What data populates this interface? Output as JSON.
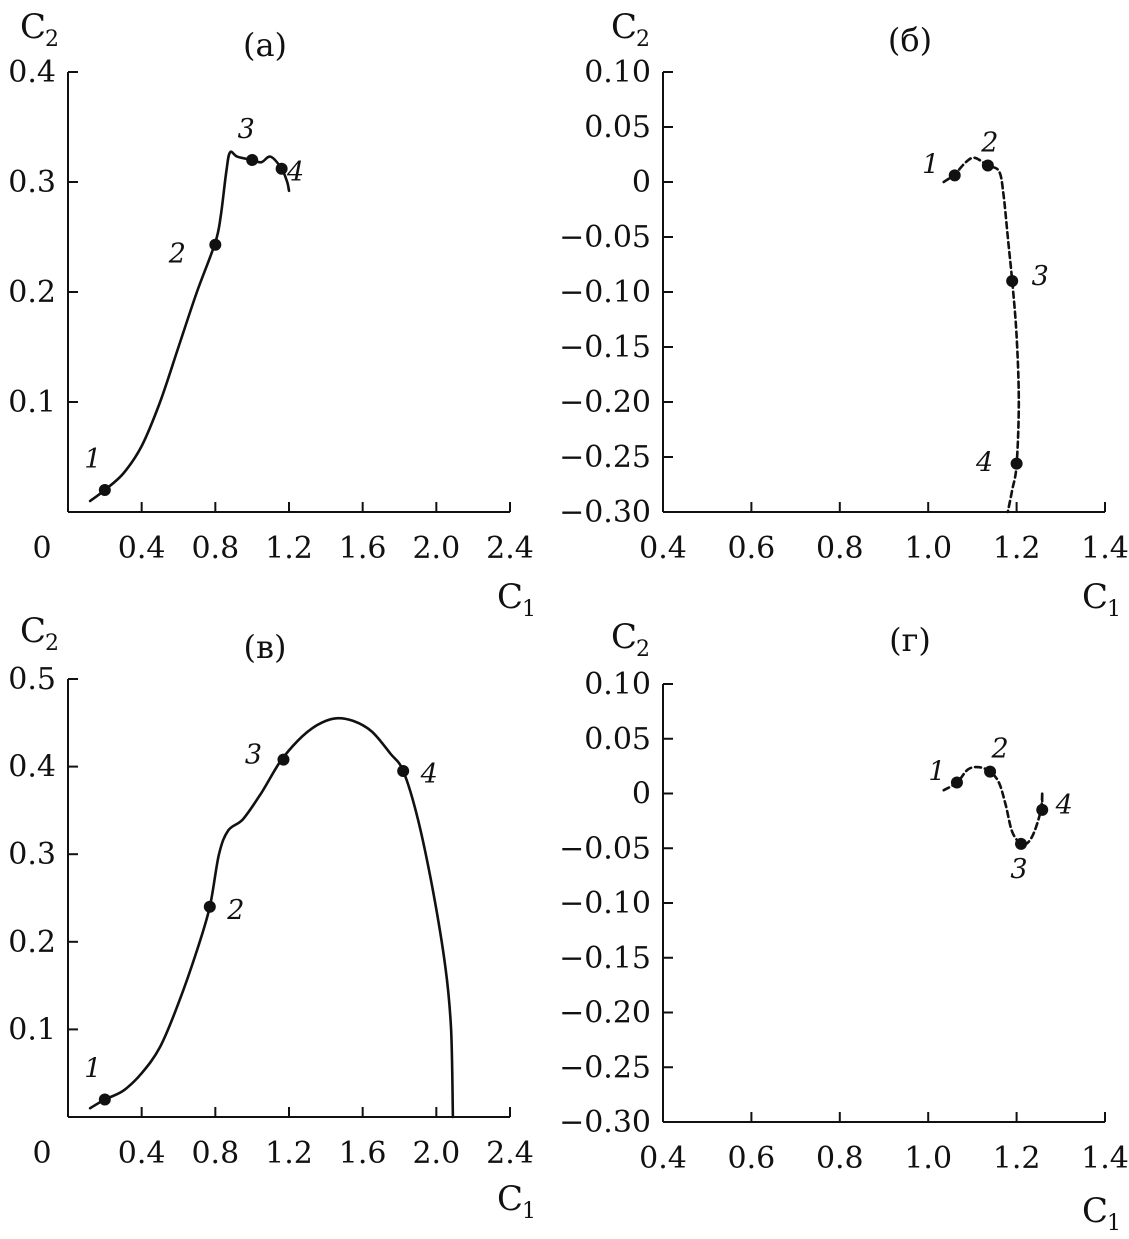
{
  "chart_data": [
    {
      "panel": "(а)",
      "type": "line",
      "xlabel": "C",
      "xlabel_sub": "1",
      "ylabel": "C",
      "ylabel_sub": "2",
      "xlim": [
        0,
        2.4
      ],
      "ylim": [
        0,
        0.4
      ],
      "x_ticks": [
        "0",
        "0.4",
        "0.8",
        "1.2",
        "1.6",
        "2.0",
        "2.4"
      ],
      "y_ticks": [
        "0.1",
        "0.2",
        "0.3",
        "0.4"
      ],
      "line_style": "solid",
      "curve": [
        [
          0.12,
          0.01
        ],
        [
          0.2,
          0.02
        ],
        [
          0.3,
          0.035
        ],
        [
          0.4,
          0.06
        ],
        [
          0.5,
          0.1
        ],
        [
          0.6,
          0.15
        ],
        [
          0.7,
          0.2
        ],
        [
          0.8,
          0.245
        ],
        [
          0.83,
          0.27
        ],
        [
          0.86,
          0.31
        ],
        [
          0.88,
          0.327
        ],
        [
          0.92,
          0.323
        ],
        [
          1.0,
          0.32
        ],
        [
          1.05,
          0.318
        ],
        [
          1.1,
          0.323
        ],
        [
          1.16,
          0.312
        ],
        [
          1.19,
          0.3
        ],
        [
          1.2,
          0.292
        ]
      ],
      "points": [
        {
          "label": "1",
          "x": 0.2,
          "y": 0.02
        },
        {
          "label": "2",
          "x": 0.8,
          "y": 0.243
        },
        {
          "label": "3",
          "x": 1.0,
          "y": 0.32
        },
        {
          "label": "4",
          "x": 1.16,
          "y": 0.312
        }
      ]
    },
    {
      "panel": "(б)",
      "type": "line",
      "xlabel": "C",
      "xlabel_sub": "1",
      "ylabel": "C",
      "ylabel_sub": "2",
      "xlim": [
        0.4,
        1.4
      ],
      "ylim": [
        -0.3,
        0.1
      ],
      "x_ticks": [
        "0.4",
        "0.6",
        "0.8",
        "1.0",
        "1.2",
        "1.4"
      ],
      "y_ticks": [
        "0.10",
        "0.05",
        "0",
        "−0.05",
        "−0.10",
        "−0.15",
        "−0.20",
        "−0.25",
        "−0.30"
      ],
      "line_style": "dashed",
      "curve": [
        [
          1.035,
          0.0
        ],
        [
          1.06,
          0.007
        ],
        [
          1.085,
          0.018
        ],
        [
          1.105,
          0.022
        ],
        [
          1.135,
          0.015
        ],
        [
          1.16,
          0.01
        ],
        [
          1.17,
          -0.01
        ],
        [
          1.18,
          -0.05
        ],
        [
          1.19,
          -0.09
        ],
        [
          1.2,
          -0.14
        ],
        [
          1.205,
          -0.2
        ],
        [
          1.2,
          -0.257
        ],
        [
          1.19,
          -0.28
        ],
        [
          1.18,
          -0.3
        ]
      ],
      "points": [
        {
          "label": "1",
          "x": 1.06,
          "y": 0.006
        },
        {
          "label": "2",
          "x": 1.135,
          "y": 0.015
        },
        {
          "label": "3",
          "x": 1.19,
          "y": -0.09
        },
        {
          "label": "4",
          "x": 1.2,
          "y": -0.256
        }
      ]
    },
    {
      "panel": "(в)",
      "type": "line",
      "xlabel": "C",
      "xlabel_sub": "1",
      "ylabel": "C",
      "ylabel_sub": "2",
      "xlim": [
        0,
        2.4
      ],
      "ylim": [
        0,
        0.5
      ],
      "x_ticks": [
        "0",
        "0.4",
        "0.8",
        "1.2",
        "1.6",
        "2.0",
        "2.4"
      ],
      "y_ticks": [
        "0.1",
        "0.2",
        "0.3",
        "0.4",
        "0.5"
      ],
      "line_style": "solid",
      "curve": [
        [
          0.12,
          0.01
        ],
        [
          0.2,
          0.02
        ],
        [
          0.3,
          0.03
        ],
        [
          0.4,
          0.05
        ],
        [
          0.5,
          0.08
        ],
        [
          0.6,
          0.13
        ],
        [
          0.7,
          0.19
        ],
        [
          0.77,
          0.24
        ],
        [
          0.82,
          0.3
        ],
        [
          0.87,
          0.327
        ],
        [
          0.95,
          0.34
        ],
        [
          1.05,
          0.37
        ],
        [
          1.15,
          0.405
        ],
        [
          1.25,
          0.43
        ],
        [
          1.35,
          0.447
        ],
        [
          1.45,
          0.455
        ],
        [
          1.55,
          0.452
        ],
        [
          1.65,
          0.44
        ],
        [
          1.75,
          0.415
        ],
        [
          1.82,
          0.395
        ],
        [
          1.9,
          0.34
        ],
        [
          1.98,
          0.26
        ],
        [
          2.05,
          0.17
        ],
        [
          2.08,
          0.1
        ],
        [
          2.09,
          0.0
        ]
      ],
      "points": [
        {
          "label": "1",
          "x": 0.2,
          "y": 0.02
        },
        {
          "label": "2",
          "x": 0.77,
          "y": 0.24
        },
        {
          "label": "3",
          "x": 1.17,
          "y": 0.408
        },
        {
          "label": "4",
          "x": 1.82,
          "y": 0.395
        }
      ]
    },
    {
      "panel": "(г)",
      "type": "line",
      "xlabel": "C",
      "xlabel_sub": "1",
      "ylabel": "C",
      "ylabel_sub": "2",
      "xlim": [
        0.4,
        1.4
      ],
      "ylim": [
        -0.3,
        0.1
      ],
      "x_ticks": [
        "0.4",
        "0.6",
        "0.8",
        "1.0",
        "1.2",
        "1.4"
      ],
      "y_ticks": [
        "0.10",
        "0.05",
        "0",
        "−0.05",
        "−0.10",
        "−0.15",
        "−0.20",
        "−0.25",
        "−0.30"
      ],
      "line_style": "dashed",
      "curve": [
        [
          1.035,
          0.003
        ],
        [
          1.065,
          0.01
        ],
        [
          1.09,
          0.022
        ],
        [
          1.115,
          0.024
        ],
        [
          1.14,
          0.02
        ],
        [
          1.16,
          0.01
        ],
        [
          1.175,
          -0.01
        ],
        [
          1.19,
          -0.035
        ],
        [
          1.21,
          -0.046
        ],
        [
          1.225,
          -0.045
        ],
        [
          1.24,
          -0.035
        ],
        [
          1.255,
          -0.015
        ],
        [
          1.258,
          0.0
        ]
      ],
      "points": [
        {
          "label": "1",
          "x": 1.065,
          "y": 0.01
        },
        {
          "label": "2",
          "x": 1.14,
          "y": 0.02
        },
        {
          "label": "3",
          "x": 1.21,
          "y": -0.046
        },
        {
          "label": "4",
          "x": 1.258,
          "y": -0.015
        }
      ]
    }
  ]
}
